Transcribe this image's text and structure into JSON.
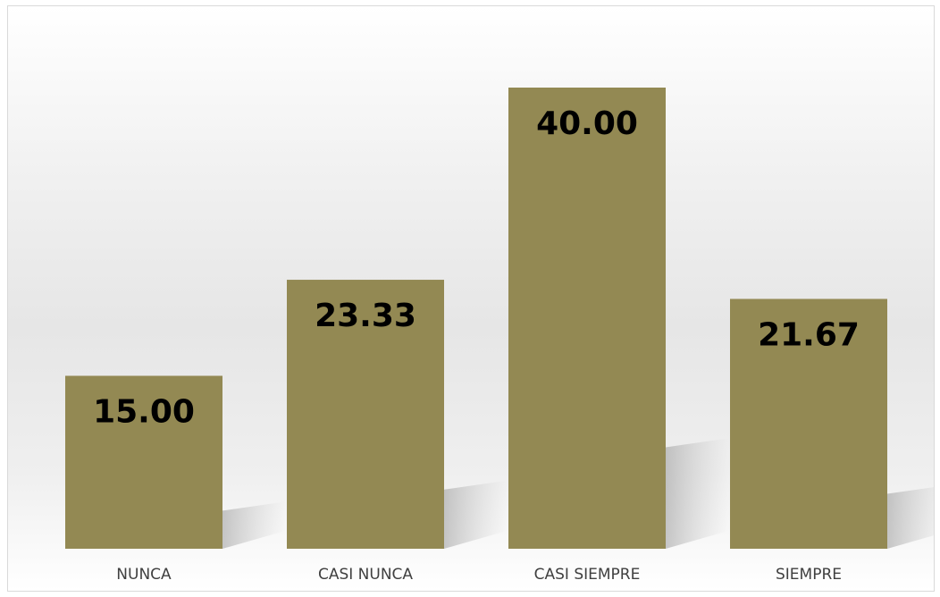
{
  "chart_data": {
    "type": "bar",
    "categories": [
      "NUNCA",
      "CASI NUNCA",
      "CASI SIEMPRE",
      "SIEMPRE"
    ],
    "values": [
      15.0,
      23.33,
      40.0,
      21.67
    ],
    "value_labels": [
      "15.00",
      "23.33",
      "40.00",
      "21.67"
    ],
    "title": "",
    "xlabel": "",
    "ylabel": "",
    "ylim": [
      0,
      40
    ],
    "grid": false,
    "legend": "none",
    "bar_color": "#938953",
    "label_color": "#000000",
    "category_color": "#404040"
  }
}
